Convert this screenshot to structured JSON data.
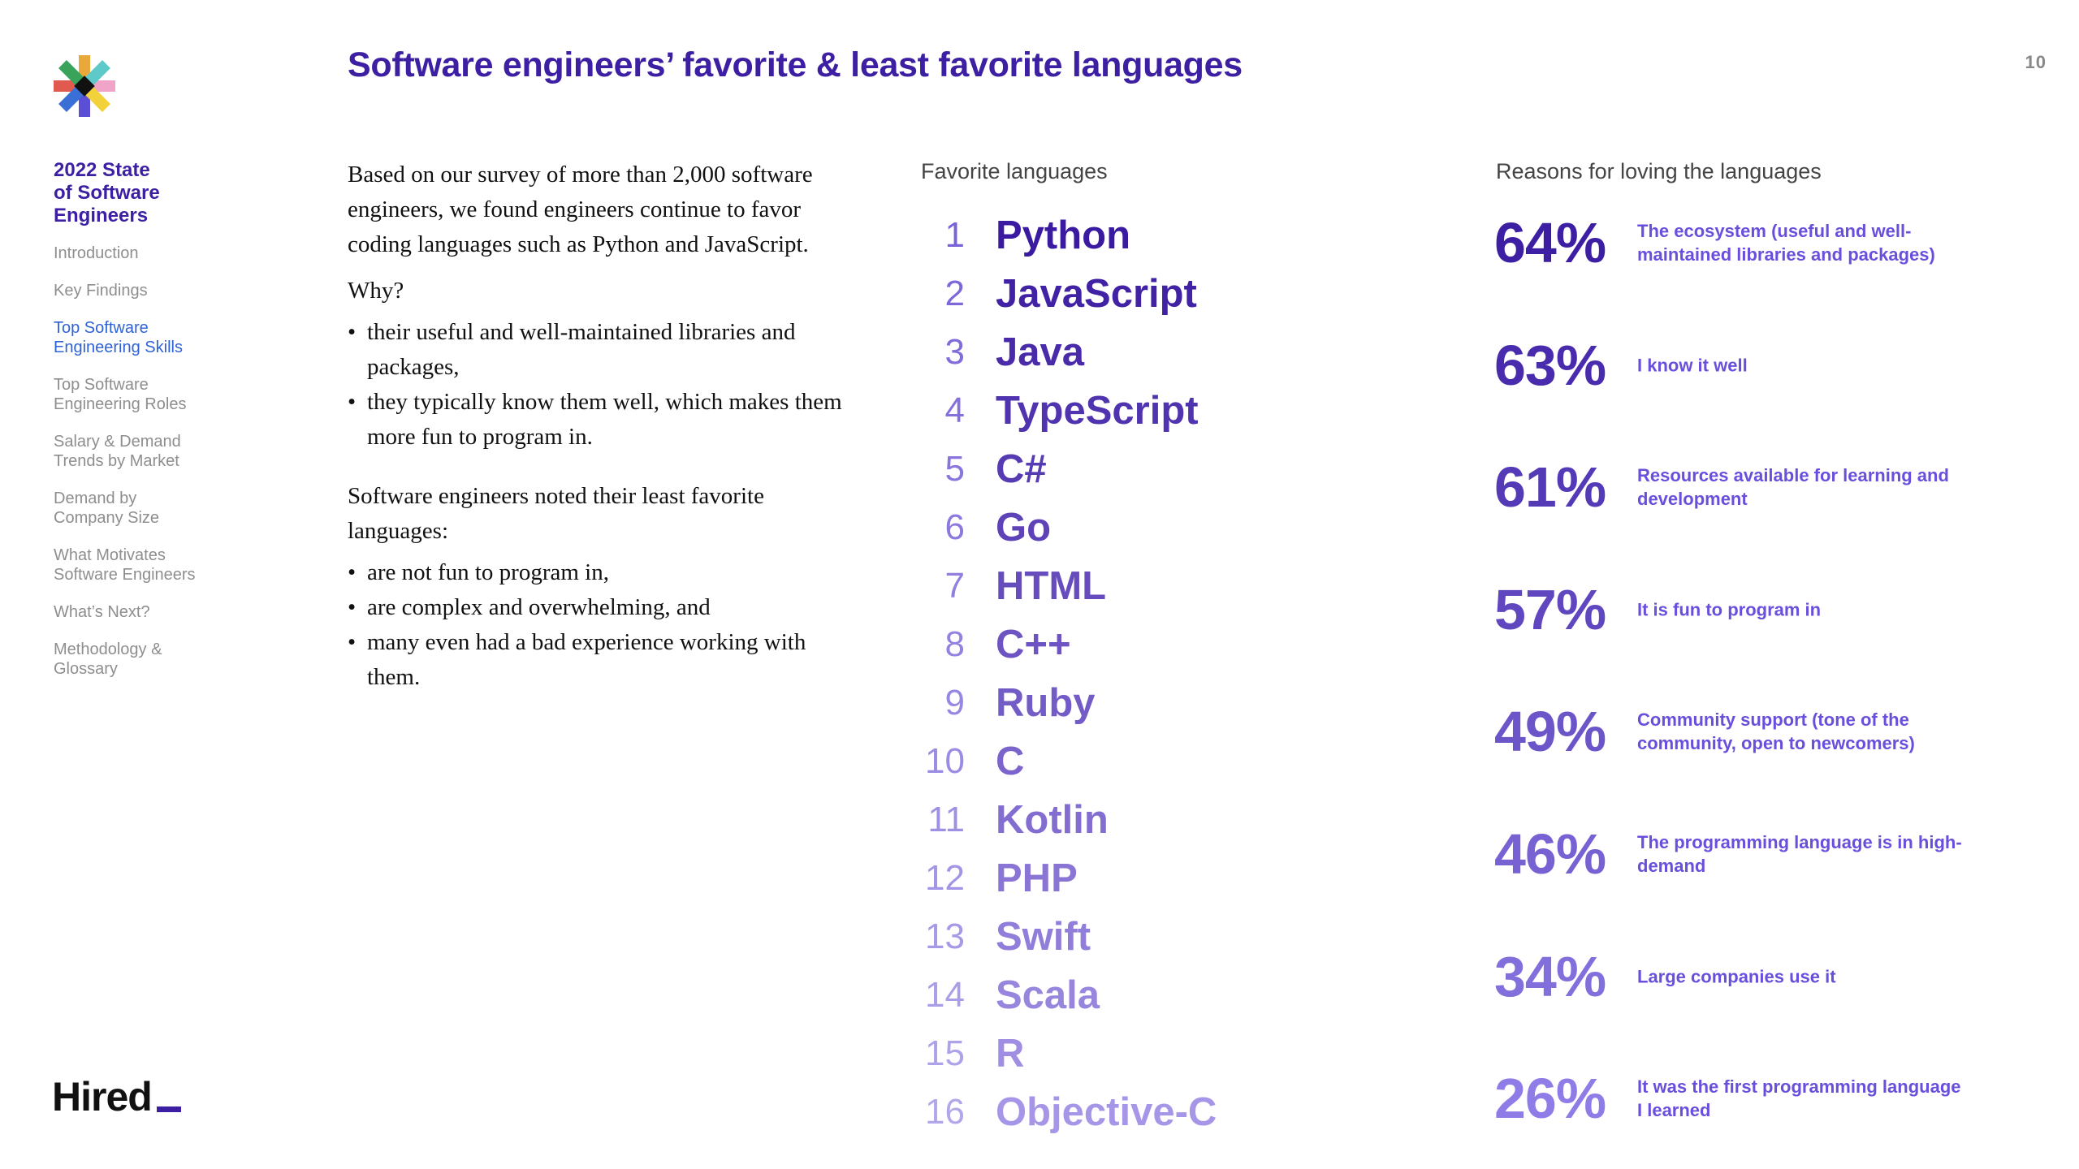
{
  "page": {
    "title": "Software engineers’ favorite & least favorite languages",
    "page_number": "10"
  },
  "sidebar": {
    "heading": "2022 State\nof Software\nEngineers",
    "items": [
      {
        "label": "Introduction",
        "active": false
      },
      {
        "label": "Key Findings",
        "active": false
      },
      {
        "label": "Top Software\nEngineering Skills",
        "active": true
      },
      {
        "label": "Top Software\nEngineering Roles",
        "active": false
      },
      {
        "label": "Salary & Demand\nTrends by Market",
        "active": false
      },
      {
        "label": "Demand by\nCompany Size",
        "active": false
      },
      {
        "label": "What Motivates\nSoftware Engineers",
        "active": false
      },
      {
        "label": "What’s Next?",
        "active": false
      },
      {
        "label": "Methodology &\nGlossary",
        "active": false
      }
    ],
    "active_color": "#2f62d6",
    "inactive_color": "#8e8e8e"
  },
  "brand": {
    "name": "Hired",
    "logo_icon": "asterisk-logo-icon"
  },
  "body": {
    "intro": "Based on our survey of more than 2,000 software engineers, we found engineers continue to favor coding languages such as Python and JavaScript.",
    "why_label": "Why?",
    "why_bullets": [
      "their useful and well-maintained libraries and packages,",
      "they typically know them well, which makes them more fun to program in."
    ],
    "least_intro": "Software engineers noted their least favorite languages:",
    "least_bullets": [
      "are not fun to program in,",
      "are complex and overwhelming, and",
      "many even had a bad experience working with them."
    ]
  },
  "favorites": {
    "header": "Favorite languages",
    "gradient_start": "#3a1aa0",
    "gradient_end": "#a796e8",
    "rank_color_start": "#7a63d8",
    "rank_color_end": "#b3a6ea",
    "languages": [
      {
        "rank": "1",
        "name": "Python"
      },
      {
        "rank": "2",
        "name": "JavaScript"
      },
      {
        "rank": "3",
        "name": "Java"
      },
      {
        "rank": "4",
        "name": "TypeScript"
      },
      {
        "rank": "5",
        "name": "C#"
      },
      {
        "rank": "6",
        "name": "Go"
      },
      {
        "rank": "7",
        "name": "HTML"
      },
      {
        "rank": "8",
        "name": "C++"
      },
      {
        "rank": "9",
        "name": "Ruby"
      },
      {
        "rank": "10",
        "name": "C"
      },
      {
        "rank": "11",
        "name": "Kotlin"
      },
      {
        "rank": "12",
        "name": "PHP"
      },
      {
        "rank": "13",
        "name": "Swift"
      },
      {
        "rank": "14",
        "name": "Scala"
      },
      {
        "rank": "15",
        "name": "R"
      },
      {
        "rank": "16",
        "name": "Objective-C"
      }
    ]
  },
  "reasons": {
    "header": "Reasons for loving the languages",
    "pct_color_start": "#3d1fa3",
    "pct_color_end": "#8f7ce6",
    "text_color": "#6a4fdc",
    "items": [
      {
        "percent": "64%",
        "text": "The ecosystem (useful and well-maintained libraries and packages)"
      },
      {
        "percent": "63%",
        "text": "I know it well"
      },
      {
        "percent": "61%",
        "text": "Resources available for learning and development"
      },
      {
        "percent": "57%",
        "text": "It is fun to program in"
      },
      {
        "percent": "49%",
        "text": "Community support (tone of the community, open to newcomers)"
      },
      {
        "percent": "46%",
        "text": "The programming language is in high-demand"
      },
      {
        "percent": "34%",
        "text": "Large companies use it"
      },
      {
        "percent": "26%",
        "text": "It was the first programming language I learned"
      }
    ]
  }
}
